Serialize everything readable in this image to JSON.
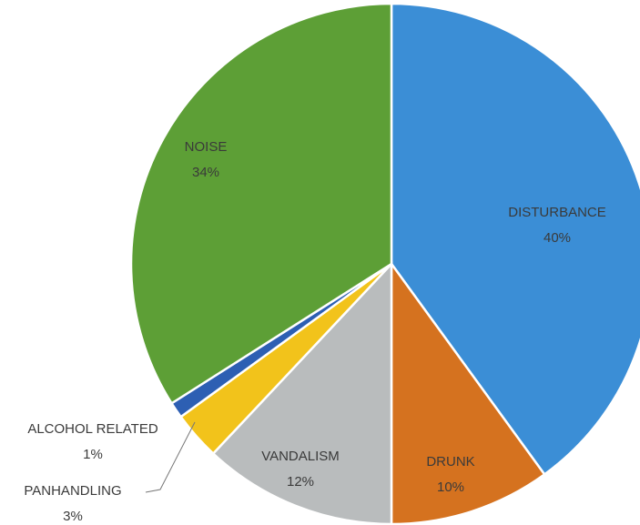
{
  "chart_data": {
    "type": "pie",
    "categories": [
      "DISTURBANCE",
      "DRUNK",
      "VANDALISM",
      "PANHANDLING",
      "ALCOHOL RELATED",
      "NOISE"
    ],
    "values": [
      40,
      10,
      12,
      3,
      1,
      34
    ],
    "value_labels": [
      "40%",
      "10%",
      "12%",
      "3%",
      "1%",
      "34%"
    ],
    "colors": [
      "#3b8ed6",
      "#d5721f",
      "#b9bcbd",
      "#f2c31b",
      "#2d5fb3",
      "#5d9f36"
    ]
  }
}
